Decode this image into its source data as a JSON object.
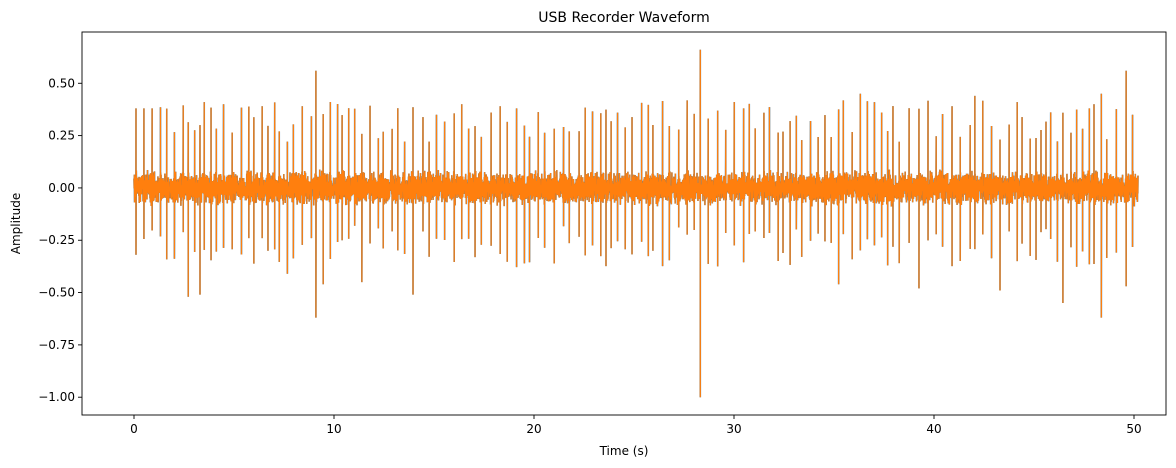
{
  "chart_data": {
    "type": "line",
    "title": "USB Recorder Waveform",
    "xlabel": "Time (s)",
    "ylabel": "Amplitude",
    "xlim": [
      -2.6,
      51.6
    ],
    "ylim": [
      -1.085,
      0.745
    ],
    "x_ticks": [
      0,
      10,
      20,
      30,
      40,
      50
    ],
    "x_tick_labels": [
      "0",
      "10",
      "20",
      "30",
      "40",
      "50"
    ],
    "y_ticks": [
      0.5,
      0.25,
      0.0,
      -0.25,
      -0.5,
      -0.75,
      -1.0
    ],
    "y_tick_labels": [
      "0.50",
      "0.25",
      "0.00",
      "−0.25",
      "−0.50",
      "−0.75",
      "−1.00"
    ],
    "grid": false,
    "legend": "none",
    "series": [
      {
        "color": "#ff7f0e",
        "underlay_color": "#1f77b4",
        "time_range": [
          0,
          50.2
        ],
        "noise_band": 0.09,
        "spike_interval": 0.36,
        "spike_interval_jitter": 0.14,
        "spike_positive_range": [
          0.22,
          0.42
        ],
        "spike_negative_range": [
          -0.38,
          -0.18
        ],
        "peaks": [
          {
            "x": 0.2,
            "y": 0.38
          },
          {
            "x": 0.6,
            "y": 0.38
          },
          {
            "x": 1.0,
            "y": 0.38
          },
          {
            "x": 2.6,
            "y": -0.52
          },
          {
            "x": 3.3,
            "y": -0.51
          },
          {
            "x": 3.5,
            "y": 0.41
          },
          {
            "x": 4.5,
            "y": 0.4
          },
          {
            "x": 6.5,
            "y": 0.39
          },
          {
            "x": 7.5,
            "y": -0.41
          },
          {
            "x": 8.3,
            "y": 0.39
          },
          {
            "x": 9.0,
            "y": 0.56
          },
          {
            "x": 9.0,
            "y": -0.62
          },
          {
            "x": 9.6,
            "y": -0.46
          },
          {
            "x": 11.3,
            "y": -0.45
          },
          {
            "x": 14.1,
            "y": -0.51
          },
          {
            "x": 16.2,
            "y": 0.4
          },
          {
            "x": 18.3,
            "y": 0.39
          },
          {
            "x": 19.0,
            "y": 0.38
          },
          {
            "x": 28.5,
            "y": 0.66
          },
          {
            "x": 28.5,
            "y": -1.0
          },
          {
            "x": 30.5,
            "y": 0.38
          },
          {
            "x": 35.1,
            "y": -0.46
          },
          {
            "x": 36.3,
            "y": 0.45
          },
          {
            "x": 37.1,
            "y": 0.41
          },
          {
            "x": 39.2,
            "y": -0.48
          },
          {
            "x": 40.8,
            "y": 0.39
          },
          {
            "x": 42.1,
            "y": 0.44
          },
          {
            "x": 43.3,
            "y": -0.49
          },
          {
            "x": 44.1,
            "y": 0.41
          },
          {
            "x": 46.5,
            "y": -0.55
          },
          {
            "x": 47.8,
            "y": 0.38
          },
          {
            "x": 48.2,
            "y": 0.53
          },
          {
            "x": 48.3,
            "y": -0.62
          },
          {
            "x": 48.4,
            "y": 0.45
          },
          {
            "x": 49.6,
            "y": 0.56
          },
          {
            "x": 49.7,
            "y": -0.47
          }
        ]
      }
    ]
  }
}
